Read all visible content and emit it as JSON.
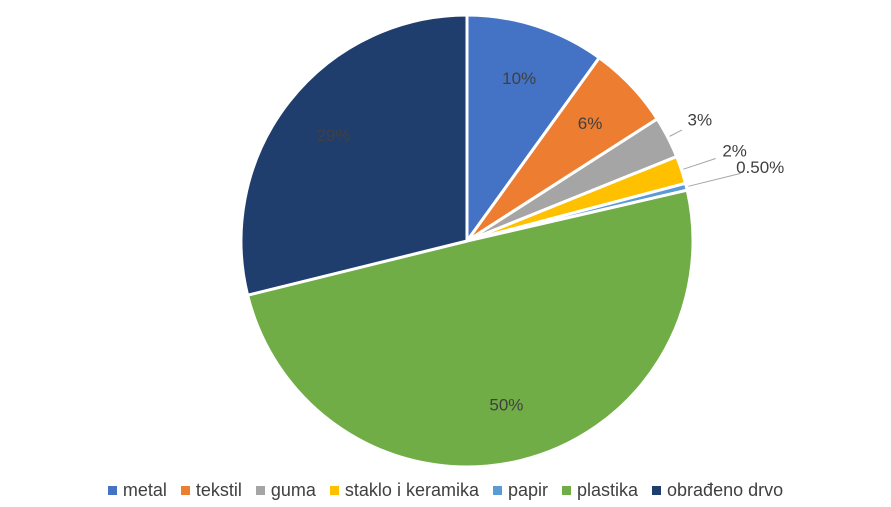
{
  "chart_data": {
    "type": "pie",
    "categories": [
      "metal",
      "tekstil",
      "guma",
      "staklo i keramika",
      "papir",
      "plastika",
      "obrađeno drvo"
    ],
    "values": [
      10,
      6,
      3,
      2,
      0.5,
      50,
      29
    ],
    "value_labels": [
      "10%",
      "6%",
      "3%",
      "2%",
      "0.50%",
      "50%",
      "29%"
    ],
    "colors": [
      "#4472c4",
      "#ed7d31",
      "#a5a5a5",
      "#ffc000",
      "#5b9bd5",
      "#70ad47",
      "#1f3e6e"
    ],
    "legend": "bottom"
  }
}
